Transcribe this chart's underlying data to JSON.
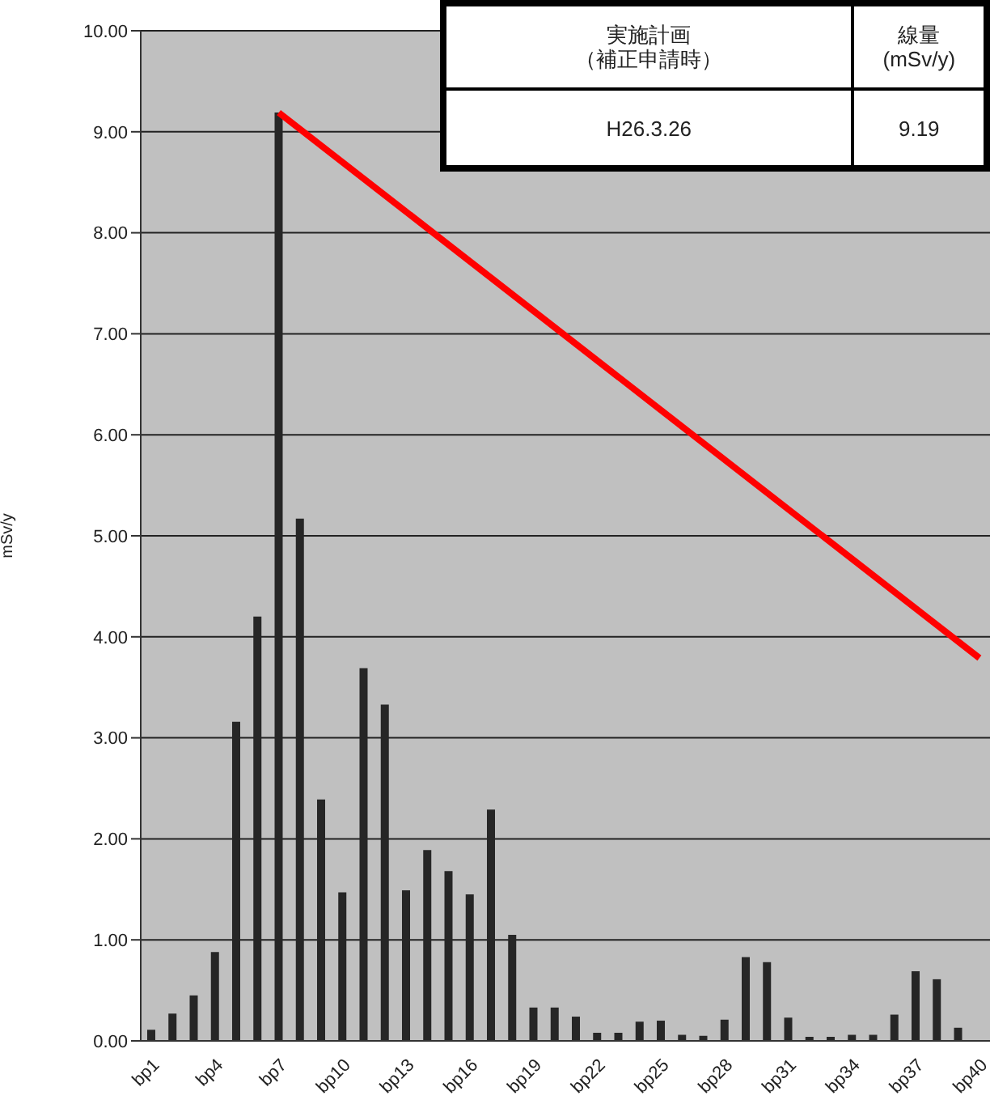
{
  "chart_data": {
    "type": "bar",
    "ylabel": "mSv/y",
    "categories": [
      "bp1",
      null,
      null,
      "bp4",
      null,
      null,
      "bp7",
      null,
      null,
      "bp10",
      null,
      null,
      "bp13",
      null,
      null,
      "bp16",
      null,
      null,
      "bp19",
      null,
      null,
      "bp22",
      null,
      null,
      "bp25",
      null,
      null,
      "bp28",
      null,
      null,
      "bp31",
      null,
      null,
      "bp34",
      null,
      null,
      "bp37",
      null,
      null,
      "bp40"
    ],
    "series": [
      {
        "color": "#262626",
        "values": [
          0.11,
          0.27,
          0.45,
          0.88,
          3.16,
          4.2,
          9.19,
          5.17,
          2.39,
          1.47,
          3.69,
          3.33,
          1.49,
          1.89,
          1.68,
          1.45,
          2.29,
          1.05,
          0.33,
          0.33,
          0.24,
          0.08,
          0.08,
          0.19,
          0.2,
          0.06,
          0.05,
          0.21,
          0.83,
          0.78,
          0.23,
          0.04,
          0.04,
          0.06,
          0.06,
          0.26,
          0.69,
          0.61,
          0.13,
          null
        ]
      },
      {
        "type": "line",
        "color": "#ff0000",
        "marker": "none",
        "line_style": "solid",
        "values": [
          null,
          null,
          null,
          null,
          null,
          null,
          9.19,
          null,
          null,
          null,
          null,
          null,
          null,
          null,
          null,
          null,
          null,
          null,
          null,
          null,
          null,
          null,
          null,
          null,
          null,
          null,
          null,
          null,
          null,
          null,
          null,
          null,
          null,
          null,
          null,
          null,
          null,
          null,
          null,
          3.79
        ]
      }
    ],
    "ylim": [
      0,
      10
    ],
    "yticks": [
      {
        "value": 0,
        "label": "0.00"
      },
      {
        "value": 1,
        "label": "1.00"
      },
      {
        "value": 2,
        "label": "2.00"
      },
      {
        "value": 3,
        "label": "3.00"
      },
      {
        "value": 4,
        "label": "4.00"
      },
      {
        "value": 5,
        "label": "5.00"
      },
      {
        "value": 6,
        "label": "6.00"
      },
      {
        "value": 7,
        "label": "7.00"
      },
      {
        "value": 8,
        "label": "8.00"
      },
      {
        "value": 9,
        "label": "9.00"
      },
      {
        "value": 10,
        "label": "10.00"
      }
    ],
    "grid": "y",
    "annotations": [
      "実施計画（補正申請時）",
      "線量\n(mSv/y)",
      "H26.3.26",
      "9.19"
    ]
  }
}
